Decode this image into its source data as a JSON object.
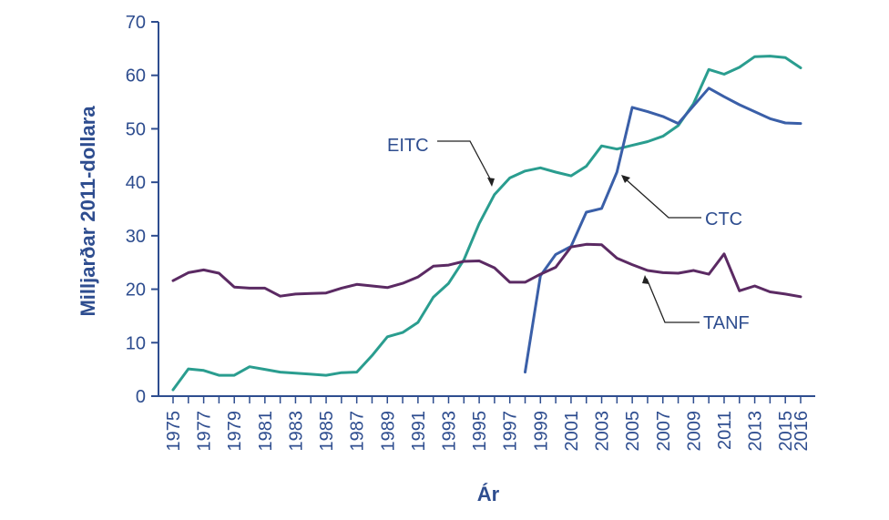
{
  "chart_data": {
    "type": "line",
    "xlabel": "Ár",
    "ylabel": "Milljarðar 2011-dollara",
    "ylim": [
      0,
      70
    ],
    "xlim": [
      1975,
      2016
    ],
    "yticks": [
      0,
      10,
      20,
      30,
      40,
      50,
      60,
      70
    ],
    "xticks": [
      1975,
      1977,
      1979,
      1981,
      1983,
      1985,
      1987,
      1989,
      1991,
      1993,
      1995,
      1997,
      1999,
      2001,
      2003,
      2005,
      2007,
      2009,
      2011,
      2013,
      2015,
      2016
    ],
    "grid": false,
    "series": [
      {
        "name": "EITC",
        "color": "#2a9d8f",
        "points": [
          [
            1975,
            1.2
          ],
          [
            1976,
            5.1
          ],
          [
            1977,
            4.8
          ],
          [
            1978,
            3.9
          ],
          [
            1979,
            3.9
          ],
          [
            1980,
            5.5
          ],
          [
            1981,
            5.0
          ],
          [
            1982,
            4.5
          ],
          [
            1983,
            4.3
          ],
          [
            1984,
            4.1
          ],
          [
            1985,
            3.9
          ],
          [
            1986,
            4.4
          ],
          [
            1987,
            4.5
          ],
          [
            1988,
            7.6
          ],
          [
            1989,
            11.1
          ],
          [
            1990,
            11.9
          ],
          [
            1991,
            13.8
          ],
          [
            1992,
            18.5
          ],
          [
            1993,
            21.1
          ],
          [
            1994,
            25.5
          ],
          [
            1995,
            32.3
          ],
          [
            1996,
            37.7
          ],
          [
            1997,
            40.8
          ],
          [
            1998,
            42.1
          ],
          [
            1999,
            42.7
          ],
          [
            2000,
            41.9
          ],
          [
            2001,
            41.2
          ],
          [
            2002,
            43.0
          ],
          [
            2003,
            46.8
          ],
          [
            2004,
            46.2
          ],
          [
            2005,
            46.9
          ],
          [
            2006,
            47.6
          ],
          [
            2007,
            48.6
          ],
          [
            2008,
            50.6
          ],
          [
            2009,
            54.7
          ],
          [
            2010,
            61.1
          ],
          [
            2011,
            60.2
          ],
          [
            2012,
            61.5
          ],
          [
            2013,
            63.5
          ],
          [
            2014,
            63.6
          ],
          [
            2015,
            63.3
          ],
          [
            2016,
            61.4
          ]
        ]
      },
      {
        "name": "CTC",
        "color": "#3a5fa8",
        "points": [
          [
            1998,
            4.5
          ],
          [
            1999,
            22.5
          ],
          [
            2000,
            26.5
          ],
          [
            2001,
            28.0
          ],
          [
            2002,
            34.4
          ],
          [
            2003,
            35.1
          ],
          [
            2004,
            41.9
          ],
          [
            2005,
            54.0
          ],
          [
            2006,
            53.2
          ],
          [
            2007,
            52.3
          ],
          [
            2008,
            51.0
          ],
          [
            2009,
            54.3
          ],
          [
            2010,
            57.6
          ],
          [
            2011,
            56.0
          ],
          [
            2012,
            54.5
          ],
          [
            2013,
            53.2
          ],
          [
            2014,
            51.9
          ],
          [
            2015,
            51.1
          ],
          [
            2016,
            51.0
          ]
        ]
      },
      {
        "name": "TANF",
        "color": "#5b2a63",
        "points": [
          [
            1975,
            21.6
          ],
          [
            1976,
            23.1
          ],
          [
            1977,
            23.6
          ],
          [
            1978,
            23.0
          ],
          [
            1979,
            20.4
          ],
          [
            1980,
            20.2
          ],
          [
            1981,
            20.2
          ],
          [
            1982,
            18.7
          ],
          [
            1983,
            19.1
          ],
          [
            1984,
            19.2
          ],
          [
            1985,
            19.3
          ],
          [
            1986,
            20.2
          ],
          [
            1987,
            20.9
          ],
          [
            1988,
            20.6
          ],
          [
            1989,
            20.3
          ],
          [
            1990,
            21.1
          ],
          [
            1991,
            22.3
          ],
          [
            1992,
            24.3
          ],
          [
            1993,
            24.5
          ],
          [
            1994,
            25.2
          ],
          [
            1995,
            25.3
          ],
          [
            1996,
            24.0
          ],
          [
            1997,
            21.3
          ],
          [
            1998,
            21.3
          ],
          [
            1999,
            22.8
          ],
          [
            2000,
            24.1
          ],
          [
            2001,
            27.9
          ],
          [
            2002,
            28.4
          ],
          [
            2003,
            28.3
          ],
          [
            2004,
            25.8
          ],
          [
            2005,
            24.6
          ],
          [
            2006,
            23.5
          ],
          [
            2007,
            23.1
          ],
          [
            2008,
            23.0
          ],
          [
            2009,
            23.5
          ],
          [
            2010,
            22.8
          ],
          [
            2011,
            26.6
          ],
          [
            2012,
            19.7
          ],
          [
            2013,
            20.6
          ],
          [
            2014,
            19.5
          ],
          [
            2015,
            19.1
          ],
          [
            2016,
            18.6
          ]
        ]
      }
    ],
    "annotations": [
      {
        "text": "EITC",
        "series": "EITC",
        "point": [
          1996,
          40.5
        ]
      },
      {
        "text": "CTC",
        "series": "CTC",
        "point": [
          2004,
          42.0
        ]
      },
      {
        "text": "TANF",
        "series": "TANF",
        "point": [
          2006,
          23.0
        ]
      }
    ]
  }
}
